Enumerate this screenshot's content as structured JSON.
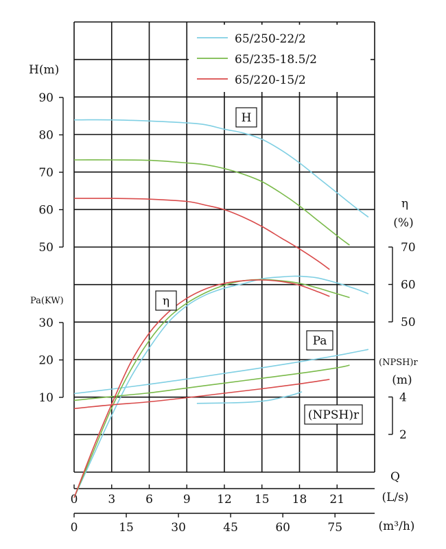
{
  "chart_data": {
    "type": "line",
    "legend": {
      "placement": "top-right",
      "entries": [
        {
          "name": "65/250-22/2",
          "color": "#7fcfe3"
        },
        {
          "name": "65/235-18.5/2",
          "color": "#7aba4a"
        },
        {
          "name": "65/220-15/2",
          "color": "#d94a4a"
        }
      ]
    },
    "x_axis": {
      "label": "Q",
      "primary": {
        "unit": "(L/s)",
        "ticks": [
          "0",
          "3",
          "6",
          "9",
          "12",
          "15",
          "18",
          "21"
        ],
        "range": [
          0,
          24
        ]
      },
      "secondary": {
        "unit": "(m³/h)",
        "ticks": [
          "0",
          "15",
          "30",
          "45",
          "60",
          "75"
        ]
      }
    },
    "y_axes": {
      "H": {
        "label": "H(m)",
        "ticks": [
          "50",
          "60",
          "70",
          "80",
          "90"
        ],
        "range": [
          50,
          90
        ]
      },
      "eta": {
        "label": "η",
        "unit": "(%)",
        "ticks": [
          "50",
          "60",
          "70"
        ],
        "range": [
          50,
          70
        ]
      },
      "Pa": {
        "label": "Pa(KW)",
        "ticks": [
          "10",
          "20",
          "30"
        ],
        "range": [
          10,
          30
        ]
      },
      "NPSHr": {
        "label": "(NPSH)r",
        "unit": "(m)",
        "ticks": [
          "2",
          "4"
        ],
        "range": [
          2,
          4
        ]
      }
    },
    "curve_labels": {
      "H": "H",
      "eta": "η",
      "Pa": "Pa",
      "NPSHr": "(NPSH)r"
    },
    "grid": true,
    "series": [
      {
        "name": "65/250-22/2",
        "color": "#7fcfe3",
        "H": {
          "x": [
            0,
            3,
            6,
            9,
            10.5,
            12,
            13.5,
            15,
            16.5,
            18,
            19.5,
            21,
            22.5,
            23.5
          ],
          "y": [
            84,
            84,
            83.7,
            83.2,
            82.7,
            81.5,
            80.5,
            78.8,
            76,
            72.5,
            68.5,
            64.5,
            60.5,
            58
          ]
        },
        "eta": {
          "x": [
            0,
            1.5,
            3,
            4.5,
            6,
            7.5,
            9,
            10.5,
            12,
            13.5,
            15,
            16.5,
            17.5,
            18.5,
            19.5,
            21,
            22.5,
            23.5
          ],
          "y": [
            3,
            14,
            25,
            35,
            43,
            49.8,
            54.3,
            57.2,
            59,
            60.2,
            61.5,
            62,
            62.2,
            62.1,
            61.7,
            60.4,
            58.8,
            57.5
          ]
        },
        "Pa": {
          "x": [
            0,
            3,
            6,
            9,
            12,
            15,
            18,
            21,
            23.5
          ],
          "y": [
            11,
            12.2,
            13.5,
            14.9,
            16.4,
            17.9,
            19.5,
            21.2,
            22.8
          ]
        },
        "NPSHr": {
          "x": [
            9.8,
            12,
            14,
            15.5,
            16.5,
            17.5,
            18.2
          ],
          "y": [
            3.66,
            3.68,
            3.72,
            3.82,
            3.96,
            4.12,
            4.28
          ]
        }
      },
      {
        "name": "65/235-18.5/2",
        "color": "#7aba4a",
        "H": {
          "x": [
            0,
            3,
            6,
            9,
            10.5,
            12,
            13.5,
            15,
            16.5,
            18,
            19.5,
            21,
            22
          ],
          "y": [
            73.3,
            73.3,
            73.2,
            72.5,
            72,
            71,
            69.5,
            67.5,
            64.5,
            61,
            57,
            53,
            50.5
          ]
        },
        "eta": {
          "x": [
            0,
            1.5,
            3,
            4.5,
            6,
            7.5,
            9,
            10.5,
            12,
            13.5,
            15,
            16.5,
            18,
            19.5,
            21,
            22
          ],
          "y": [
            3,
            15,
            27,
            37,
            45,
            51,
            55,
            57.8,
            59.8,
            61,
            61.3,
            61,
            60.3,
            59,
            57.5,
            56.5
          ]
        },
        "Pa": {
          "x": [
            0,
            3,
            6,
            9,
            12,
            15,
            18,
            21,
            22
          ],
          "y": [
            9.2,
            10.2,
            11.2,
            12.5,
            13.8,
            15.1,
            16.4,
            17.9,
            18.6
          ]
        },
        "NPSHr": null
      },
      {
        "name": "65/220-15/2",
        "color": "#d94a4a",
        "H": {
          "x": [
            0,
            3,
            6,
            9,
            10.5,
            12,
            13.5,
            15,
            16.5,
            18,
            19.5,
            20.4
          ],
          "y": [
            63,
            63,
            62.8,
            62.2,
            61.2,
            60,
            58,
            55.5,
            52.5,
            49.5,
            46.2,
            44
          ]
        },
        "eta": {
          "x": [
            0,
            1.5,
            3,
            4.5,
            6,
            7.5,
            9,
            10.5,
            12,
            13.5,
            15,
            16.5,
            18,
            19.5,
            20.4
          ],
          "y": [
            3,
            16,
            28,
            39,
            47,
            52.5,
            56.3,
            58.8,
            60.3,
            61,
            61.2,
            60.8,
            59.8,
            58,
            56.8
          ]
        },
        "Pa": {
          "x": [
            0,
            3,
            6,
            9,
            12,
            15,
            18,
            20.4
          ],
          "y": [
            7,
            8,
            8.8,
            9.9,
            11.1,
            12.3,
            13.6,
            14.8
          ]
        },
        "NPSHr": null
      }
    ]
  }
}
